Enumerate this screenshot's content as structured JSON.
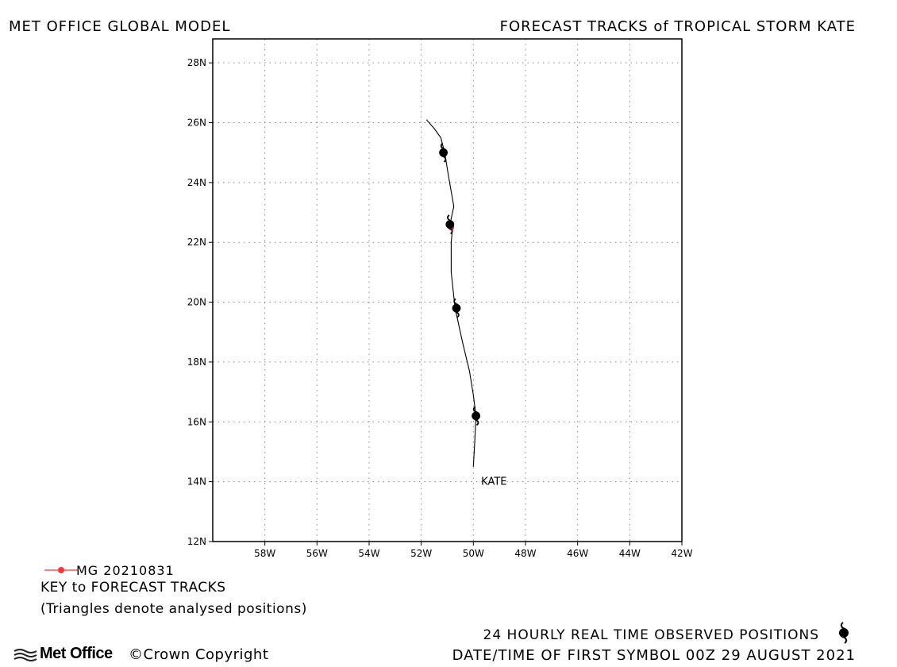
{
  "header": {
    "model": "MET OFFICE GLOBAL MODEL",
    "title": "FORECAST TRACKS of TROPICAL STORM KATE"
  },
  "map": {
    "lon_range": [
      -60,
      -42
    ],
    "lat_range": [
      12,
      28.8
    ],
    "lon_ticks": [
      {
        "value": -58,
        "label": "58W"
      },
      {
        "value": -56,
        "label": "56W"
      },
      {
        "value": -54,
        "label": "54W"
      },
      {
        "value": -52,
        "label": "52W"
      },
      {
        "value": -50,
        "label": "50W"
      },
      {
        "value": -48,
        "label": "48W"
      },
      {
        "value": -46,
        "label": "46W"
      },
      {
        "value": -44,
        "label": "44W"
      },
      {
        "value": -42,
        "label": "42W"
      }
    ],
    "lat_ticks": [
      {
        "value": 12,
        "label": "12N"
      },
      {
        "value": 14,
        "label": "14N"
      },
      {
        "value": 16,
        "label": "16N"
      },
      {
        "value": 18,
        "label": "18N"
      },
      {
        "value": 20,
        "label": "20N"
      },
      {
        "value": 22,
        "label": "22N"
      },
      {
        "value": 24,
        "label": "24N"
      },
      {
        "value": 26,
        "label": "26N"
      },
      {
        "value": 28,
        "label": "28N"
      }
    ],
    "grid": "dotted",
    "observed_track": [
      [
        -50.0,
        14.5
      ],
      [
        -49.95,
        15.3
      ],
      [
        -49.9,
        16.2
      ],
      [
        -50.0,
        16.9
      ],
      [
        -50.15,
        17.7
      ],
      [
        -50.4,
        18.6
      ],
      [
        -50.7,
        19.8
      ],
      [
        -50.85,
        21.0
      ],
      [
        -50.85,
        22.0
      ],
      [
        -50.8,
        22.5
      ],
      [
        -50.9,
        22.6
      ],
      [
        -50.75,
        23.2
      ],
      [
        -50.95,
        24.2
      ],
      [
        -51.1,
        25.0
      ],
      [
        -51.25,
        25.5
      ],
      [
        -51.5,
        25.8
      ],
      [
        -51.8,
        26.1
      ]
    ],
    "storm_symbols": [
      {
        "lon": -49.9,
        "lat": 16.2
      },
      {
        "lon": -50.65,
        "lat": 19.8
      },
      {
        "lon": -50.9,
        "lat": 22.6
      },
      {
        "lon": -51.15,
        "lat": 25.0
      }
    ],
    "forecast_marker": {
      "lon": -50.85,
      "lat": 22.5,
      "color": "#ff3333"
    },
    "storm_label": {
      "text": "KATE",
      "lon": -49.7,
      "lat": 14.0
    }
  },
  "legend": {
    "run_label": "MG 20210831",
    "run_color": "#ff3333",
    "key_title": "KEY to FORECAST TRACKS",
    "key_note": "(Triangles denote analysed positions)"
  },
  "footer": {
    "observed_note": "24 HOURLY REAL TIME OBSERVED POSITIONS",
    "first_symbol": "DATE/TIME OF FIRST SYMBOL 00Z 29 AUGUST 2021",
    "logo": "Met Office",
    "copyright": "©Crown Copyright",
    "observed_icon": "hurricane-symbol-icon"
  }
}
